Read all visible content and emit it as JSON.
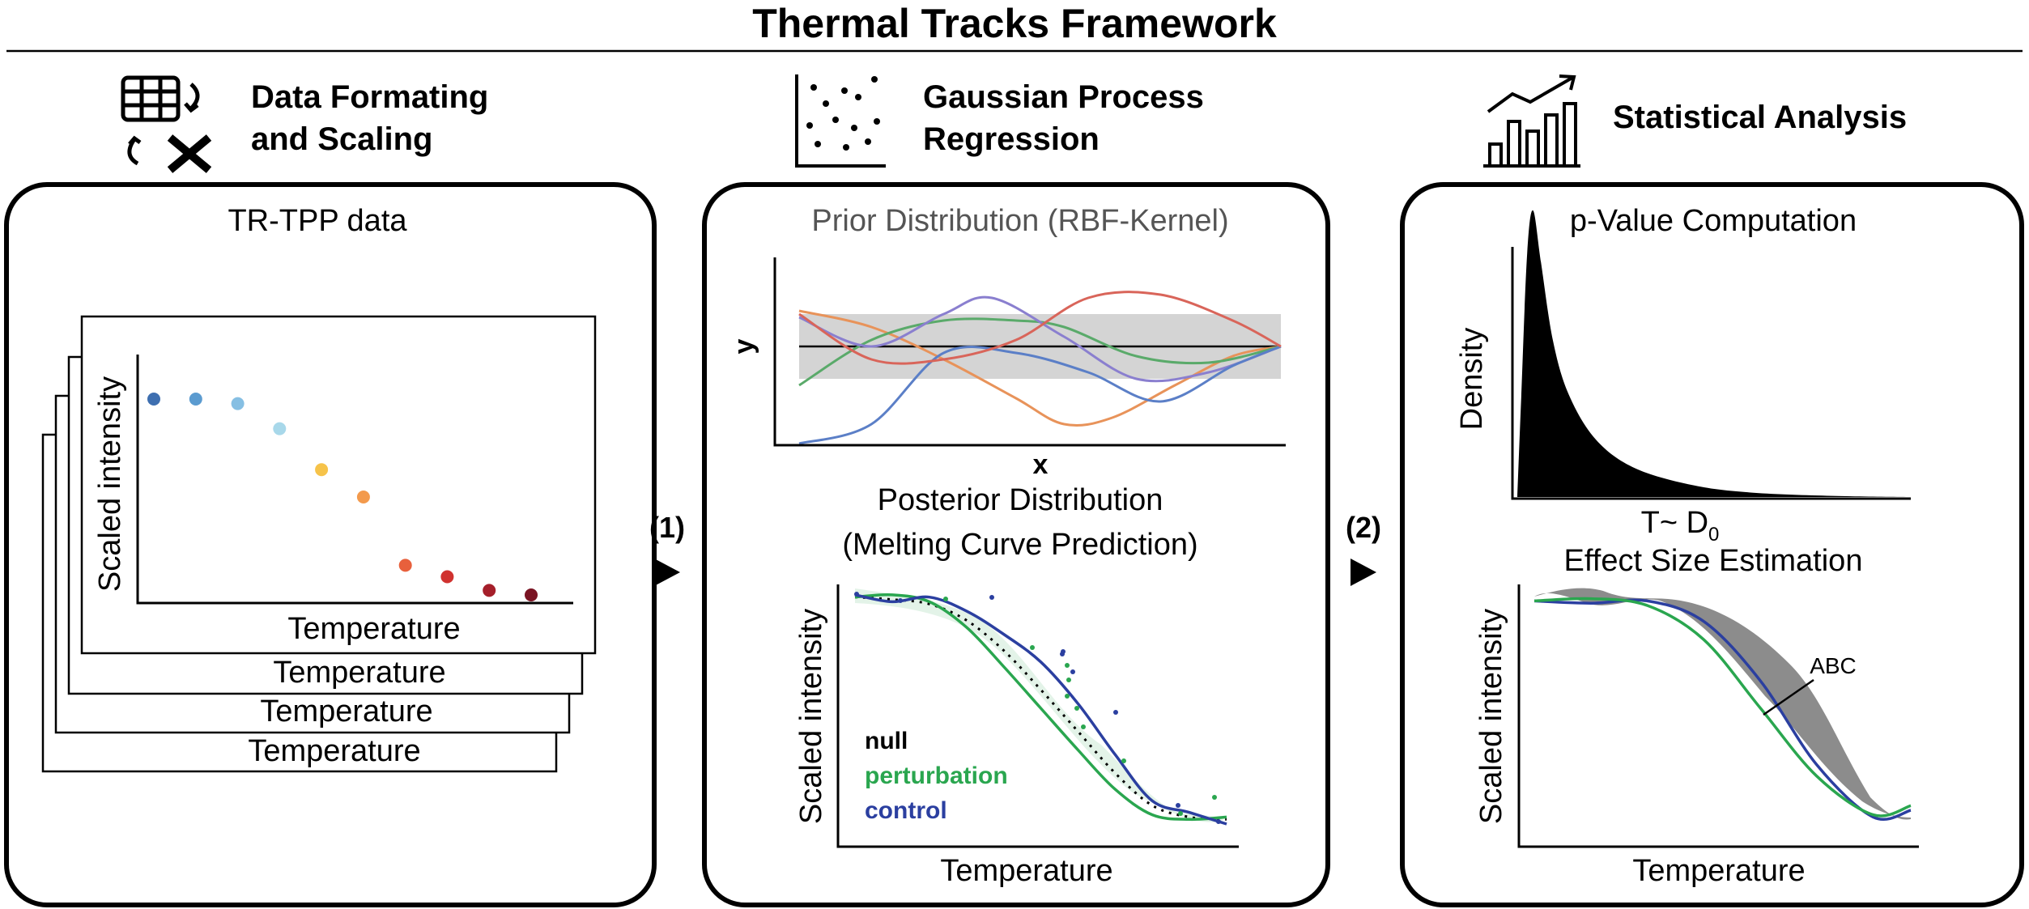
{
  "title": "Thermal Tracks Framework",
  "colors": {
    "blue": "#2b3fa0",
    "green": "#2aa64f",
    "black": "#000000",
    "gray": "#888888"
  },
  "sections": [
    {
      "icon": "table-transform-icon",
      "header_line1": "Data Formating",
      "header_line2": "and Scaling"
    },
    {
      "icon": "scatter-icon",
      "header_line1": "Gaussian Process",
      "header_line2": "Regression"
    },
    {
      "icon": "bar-trend-icon",
      "header": "Statistical Analysis"
    }
  ],
  "panel1": {
    "label": "TR-TPP data",
    "ylabel": "Scaled intensity",
    "xlabel": "Temperature",
    "stack_xlabels": [
      "Temperature",
      "Temperature",
      "Temperature"
    ]
  },
  "step1": "(1)",
  "step2": "(2)",
  "panel2": {
    "prior_title": "Prior Distribution (RBF-Kernel)",
    "prior_xlabel": "x",
    "prior_ylabel": "y",
    "posterior_title_line1": "Posterior Distribution",
    "posterior_title_line2": "(Melting Curve Prediction)",
    "posterior_ylabel": "Scaled intensity",
    "posterior_xlabel": "Temperature",
    "legend": [
      "null",
      "perturbation",
      "control"
    ]
  },
  "panel3": {
    "pvalue_title": "p-Value Computation",
    "pvalue_ylabel": "Density",
    "pvalue_xlabel": "T~ D",
    "pvalue_xlabel_sub": "0",
    "effect_title": "Effect Size Estimation",
    "effect_ylabel": "Scaled intensity",
    "effect_xlabel": "Temperature",
    "annotation": "ABC"
  },
  "chart_data": [
    {
      "type": "scatter",
      "title": "TR-TPP data",
      "xlabel": "Temperature",
      "ylabel": "Scaled intensity",
      "x": [
        1,
        2,
        3,
        4,
        5,
        6,
        7,
        8,
        9,
        10
      ],
      "y": [
        0.95,
        0.95,
        0.93,
        0.82,
        0.64,
        0.52,
        0.22,
        0.17,
        0.11,
        0.09
      ],
      "point_colors": [
        "#3e6fb0",
        "#5b9bd0",
        "#86bfe3",
        "#a8d8ea",
        "#f6c34a",
        "#f39a4c",
        "#e8603c",
        "#d0322f",
        "#a51f2a",
        "#7a1423"
      ]
    },
    {
      "type": "line",
      "title": "Prior Distribution (RBF-Kernel)",
      "xlabel": "x",
      "ylabel": "y",
      "mean": 0,
      "band": [
        -1,
        1
      ],
      "series": [
        {
          "name": "orange",
          "color": "#e8935a",
          "x": [
            0,
            0.15,
            0.3,
            0.45,
            0.55,
            0.65,
            0.78,
            0.9,
            1.0
          ],
          "y": [
            1.1,
            0.6,
            -0.4,
            -1.6,
            -2.4,
            -2.2,
            -1.2,
            -0.3,
            0.0
          ]
        },
        {
          "name": "green",
          "color": "#5aaa6a",
          "x": [
            0,
            0.15,
            0.3,
            0.45,
            0.55,
            0.7,
            0.85,
            1.0
          ],
          "y": [
            -1.2,
            0.2,
            0.8,
            0.8,
            0.6,
            -0.3,
            -0.5,
            0.0
          ]
        },
        {
          "name": "purple",
          "color": "#8a7fcf",
          "x": [
            0,
            0.15,
            0.3,
            0.4,
            0.55,
            0.7,
            0.85,
            1.0
          ],
          "y": [
            0.9,
            0.0,
            1.0,
            1.5,
            0.3,
            -1.0,
            -0.8,
            0.0
          ]
        },
        {
          "name": "blue",
          "color": "#5b7fc7",
          "x": [
            0,
            0.15,
            0.3,
            0.45,
            0.6,
            0.75,
            0.9,
            1.0
          ],
          "y": [
            -3.0,
            -2.4,
            -0.2,
            -0.2,
            -0.8,
            -1.7,
            -0.6,
            0.0
          ]
        },
        {
          "name": "red",
          "color": "#d9655a",
          "x": [
            0,
            0.15,
            0.3,
            0.45,
            0.6,
            0.75,
            0.9,
            1.0
          ],
          "y": [
            1.0,
            -0.4,
            -0.4,
            0.2,
            1.5,
            1.6,
            0.8,
            0.0
          ]
        }
      ]
    },
    {
      "type": "line",
      "title": "Posterior Distribution (Melting Curve Prediction)",
      "xlabel": "Temperature",
      "ylabel": "Scaled intensity",
      "series": [
        {
          "name": "null",
          "color": "#000000",
          "x": [
            0,
            0.1,
            0.2,
            0.3,
            0.4,
            0.5,
            0.6,
            0.7,
            0.8,
            0.9,
            1.0
          ],
          "y": [
            0.98,
            0.97,
            0.95,
            0.88,
            0.75,
            0.58,
            0.4,
            0.22,
            0.08,
            0.03,
            0.02
          ]
        },
        {
          "name": "perturbation",
          "color": "#2aa64f",
          "x": [
            0,
            0.1,
            0.2,
            0.3,
            0.4,
            0.5,
            0.6,
            0.7,
            0.8,
            0.9,
            1.0
          ],
          "y": [
            0.98,
            0.99,
            0.96,
            0.85,
            0.68,
            0.5,
            0.32,
            0.15,
            0.04,
            0.02,
            0.03
          ]
        },
        {
          "name": "control",
          "color": "#2b3fa0",
          "x": [
            0,
            0.1,
            0.2,
            0.3,
            0.4,
            0.5,
            0.6,
            0.7,
            0.8,
            0.9,
            1.0
          ],
          "y": [
            0.99,
            0.96,
            0.98,
            0.92,
            0.82,
            0.7,
            0.52,
            0.3,
            0.1,
            0.05,
            0.0
          ]
        }
      ]
    },
    {
      "type": "area",
      "title": "p-Value Computation",
      "xlabel": "T~ D0",
      "ylabel": "Density",
      "x": [
        0,
        0.01,
        0.025,
        0.04,
        0.06,
        0.09,
        0.13,
        0.2,
        0.3,
        0.45,
        0.6,
        0.8,
        1.0
      ],
      "y": [
        0,
        0.35,
        0.85,
        1.0,
        0.82,
        0.55,
        0.36,
        0.2,
        0.1,
        0.04,
        0.015,
        0.004,
        0.0
      ]
    },
    {
      "type": "line",
      "title": "Effect Size Estimation",
      "xlabel": "Temperature",
      "ylabel": "Scaled intensity",
      "series": [
        {
          "name": "control",
          "color": "#2b3fa0",
          "x": [
            0,
            0.15,
            0.3,
            0.45,
            0.6,
            0.75,
            0.9,
            1.0
          ],
          "y": [
            0.97,
            0.96,
            0.97,
            0.88,
            0.62,
            0.25,
            0.02,
            0.05
          ]
        },
        {
          "name": "perturbation",
          "color": "#2aa64f",
          "x": [
            0,
            0.15,
            0.3,
            0.45,
            0.6,
            0.75,
            0.9,
            1.0
          ],
          "y": [
            0.97,
            0.98,
            0.95,
            0.8,
            0.5,
            0.2,
            0.03,
            0.07
          ]
        }
      ],
      "annotation": "ABC"
    }
  ]
}
